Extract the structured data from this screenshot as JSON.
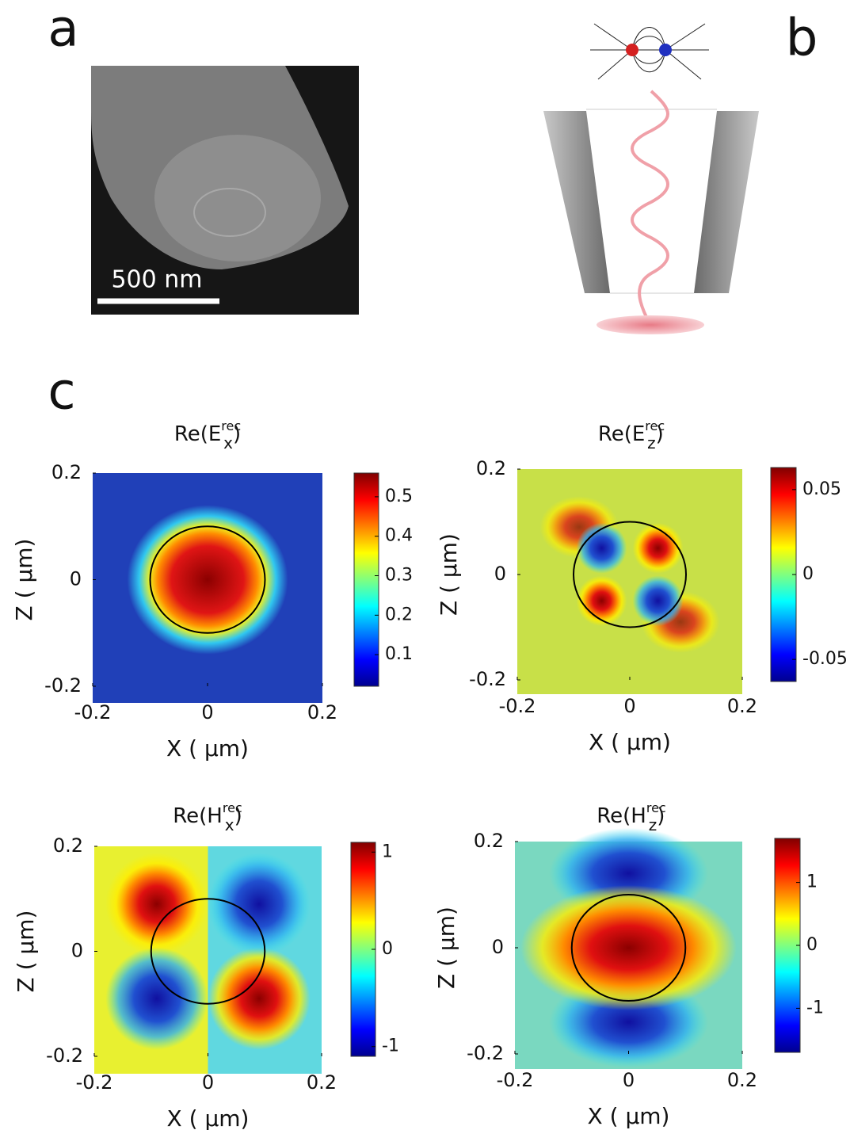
{
  "panels": {
    "a": "a",
    "b": "b",
    "c": "c"
  },
  "scale_bar": "500 nm",
  "plots": [
    {
      "title": {
        "base": "Re(E",
        "sup": "rec",
        "sub": "x",
        "close": ")"
      },
      "xlabel": "X ( µm)",
      "ylabel": "Z ( µm)",
      "xlim": [
        -0.2,
        0.2
      ],
      "ylim": [
        -0.2,
        0.2
      ],
      "xticks": [
        -0.2,
        0,
        0.2
      ],
      "yticks": [
        -0.2,
        0,
        0.2
      ],
      "clim": [
        0.02,
        0.56
      ],
      "cticks": [
        0.1,
        0.2,
        0.3,
        0.4,
        0.5
      ]
    },
    {
      "title": {
        "base": "Re(E",
        "sup": "rec",
        "sub": "z",
        "close": ")"
      },
      "xlabel": "X ( µm)",
      "ylabel": "Z ( µm)",
      "xlim": [
        -0.2,
        0.2
      ],
      "ylim": [
        -0.2,
        0.2
      ],
      "xticks": [
        -0.2,
        0,
        0.2
      ],
      "yticks": [
        -0.2,
        0,
        0.2
      ],
      "clim": [
        -0.063,
        0.063
      ],
      "cticks": [
        -0.05,
        0,
        0.05
      ]
    },
    {
      "title": {
        "base": "Re(H",
        "sup": "rec",
        "sub": "x",
        "close": ")"
      },
      "xlabel": "X ( µm)",
      "ylabel": "Z ( µm)",
      "xlim": [
        -0.2,
        0.2
      ],
      "ylim": [
        -0.2,
        0.2
      ],
      "xticks": [
        -0.2,
        0,
        0.2
      ],
      "yticks": [
        -0.2,
        0,
        0.2
      ],
      "clim": [
        -1.1,
        1.1
      ],
      "cticks": [
        -1,
        0,
        1
      ]
    },
    {
      "title": {
        "base": "Re(H",
        "sup": "rec",
        "sub": "z",
        "close": ")"
      },
      "xlabel": "X ( µm)",
      "ylabel": "Z ( µm)",
      "xlim": [
        -0.2,
        0.2
      ],
      "ylim": [
        -0.2,
        0.2
      ],
      "xticks": [
        -0.2,
        0,
        0.2
      ],
      "yticks": [
        -0.2,
        0,
        0.2
      ],
      "clim": [
        -1.7,
        1.7
      ],
      "cticks": [
        -1,
        0,
        1
      ]
    }
  ]
}
